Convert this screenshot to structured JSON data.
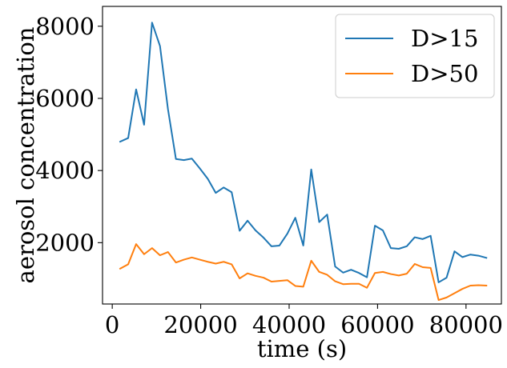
{
  "chart_data": {
    "type": "line",
    "title": "",
    "xlabel": "time (s)",
    "ylabel": "aerosol concentration",
    "xlim": [
      -2200,
      88000
    ],
    "ylim": [
      300,
      8550
    ],
    "xticks": [
      0,
      20000,
      40000,
      60000,
      80000
    ],
    "xtick_labels": [
      "0",
      "20000",
      "40000",
      "60000",
      "80000"
    ],
    "yticks": [
      2000,
      4000,
      6000,
      8000
    ],
    "ytick_labels": [
      "2000",
      "4000",
      "6000",
      "8000"
    ],
    "grid": false,
    "legend_position": "top-right",
    "series": [
      {
        "name": "D>15",
        "color": "#1f77b4",
        "x": [
          1800,
          3600,
          5400,
          7200,
          9000,
          10800,
          12600,
          14400,
          16200,
          18000,
          19800,
          21600,
          23400,
          25200,
          27000,
          28800,
          30600,
          32400,
          34200,
          36000,
          37800,
          39600,
          41400,
          43200,
          45000,
          46800,
          48600,
          50400,
          52200,
          54000,
          55800,
          57600,
          59400,
          61200,
          63000,
          64800,
          66600,
          68400,
          70200,
          72000,
          73800,
          75600,
          77400,
          79200,
          81000,
          82800,
          84600
        ],
        "values": [
          4800,
          4900,
          6250,
          5270,
          8100,
          7450,
          5700,
          4320,
          4290,
          4330,
          4060,
          3770,
          3380,
          3530,
          3400,
          2330,
          2610,
          2340,
          2140,
          1900,
          1920,
          2250,
          2690,
          1920,
          4030,
          2570,
          2780,
          1340,
          1170,
          1250,
          1160,
          1040,
          2470,
          2340,
          1850,
          1830,
          1900,
          2150,
          2100,
          2190,
          900,
          1030,
          1760,
          1600,
          1670,
          1640,
          1580
        ]
      },
      {
        "name": "D>50",
        "color": "#ff7f0e",
        "x": [
          1800,
          3600,
          5400,
          7200,
          9000,
          10800,
          12600,
          14400,
          16200,
          18000,
          19800,
          21600,
          23400,
          25200,
          27000,
          28800,
          30600,
          32400,
          34200,
          36000,
          37800,
          39600,
          41400,
          43200,
          45000,
          46800,
          48600,
          50400,
          52200,
          54000,
          55800,
          57600,
          59400,
          61200,
          63000,
          64800,
          66600,
          68400,
          70200,
          72000,
          73800,
          75600,
          77400,
          79200,
          81000,
          82800,
          84600
        ],
        "values": [
          1280,
          1400,
          1960,
          1680,
          1850,
          1650,
          1740,
          1450,
          1530,
          1590,
          1530,
          1470,
          1420,
          1470,
          1400,
          1010,
          1150,
          1080,
          1030,
          920,
          940,
          960,
          800,
          780,
          1500,
          1190,
          1110,
          930,
          850,
          860,
          860,
          750,
          1160,
          1190,
          1130,
          1090,
          1140,
          1410,
          1320,
          1300,
          410,
          480,
          600,
          720,
          810,
          820,
          810
        ]
      }
    ]
  }
}
